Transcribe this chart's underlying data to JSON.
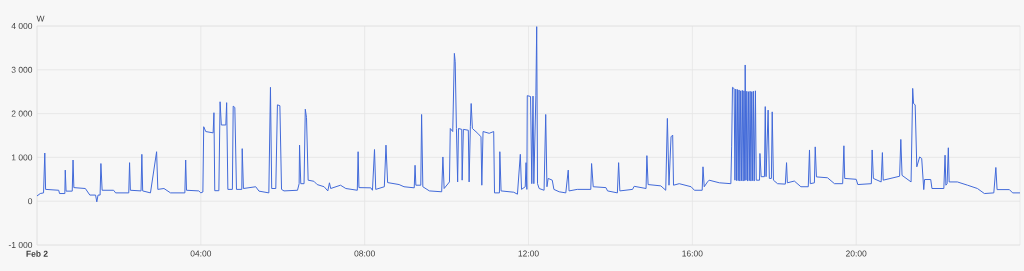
{
  "chart_data": {
    "type": "line",
    "ylabel": "W",
    "x": [
      0,
      0.08,
      0.16,
      0.19,
      0.21,
      0.53,
      0.55,
      0.68,
      0.69,
      0.71,
      0.86,
      0.88,
      0.9,
      1.18,
      1.29,
      1.43,
      1.46,
      1.49,
      1.54,
      1.56,
      1.59,
      1.87,
      1.92,
      2.24,
      2.26,
      2.28,
      2.54,
      2.56,
      2.58,
      2.77,
      2.92,
      2.95,
      3.1,
      3.26,
      3.61,
      3.63,
      3.65,
      3.95,
      4.0,
      4.05,
      4.07,
      4.12,
      4.3,
      4.32,
      4.34,
      4.44,
      4.47,
      4.5,
      4.61,
      4.63,
      4.66,
      4.77,
      4.79,
      4.83,
      4.87,
      5.0,
      5.01,
      5.04,
      5.34,
      5.42,
      5.66,
      5.7,
      5.73,
      5.83,
      5.87,
      5.93,
      5.97,
      6.03,
      6.36,
      6.4,
      6.41,
      6.44,
      6.52,
      6.55,
      6.58,
      6.62,
      6.76,
      6.84,
      7.01,
      7.1,
      7.14,
      7.17,
      7.41,
      7.54,
      7.82,
      7.84,
      7.86,
      8.15,
      8.19,
      8.24,
      8.27,
      8.48,
      8.52,
      8.56,
      8.84,
      8.96,
      9.21,
      9.23,
      9.25,
      9.37,
      9.39,
      9.42,
      9.58,
      9.88,
      9.91,
      9.94,
      10.07,
      10.09,
      10.15,
      10.19,
      10.21,
      10.24,
      10.27,
      10.29,
      10.37,
      10.38,
      10.41,
      10.53,
      10.55,
      10.58,
      10.6,
      10.63,
      10.76,
      10.84,
      10.86,
      10.89,
      11.04,
      11.15,
      11.17,
      11.29,
      11.3,
      11.33,
      11.64,
      11.73,
      11.8,
      11.83,
      11.92,
      11.94,
      11.96,
      11.97,
      12.05,
      12.08,
      12.11,
      12.13,
      12.18,
      12.2,
      12.22,
      12.26,
      12.38,
      12.42,
      12.45,
      12.48,
      12.58,
      12.62,
      12.75,
      12.91,
      12.97,
      12.99,
      13.19,
      13.52,
      13.54,
      13.58,
      13.89,
      13.93,
      14.17,
      14.2,
      14.23,
      14.54,
      14.58,
      14.87,
      14.89,
      14.92,
      15.23,
      15.35,
      15.39,
      15.43,
      15.48,
      15.52,
      15.54,
      15.68,
      15.97,
      16.05,
      16.24,
      16.26,
      16.29,
      16.37,
      16.41,
      16.66,
      16.94,
      16.96,
      16.98,
      17.02,
      17.04,
      17.06,
      17.08,
      17.1,
      17.12,
      17.14,
      17.16,
      17.18,
      17.2,
      17.22,
      17.24,
      17.26,
      17.28,
      17.29,
      17.31,
      17.33,
      17.35,
      17.37,
      17.39,
      17.41,
      17.43,
      17.45,
      17.47,
      17.49,
      17.51,
      17.54,
      17.56,
      17.64,
      17.65,
      17.68,
      17.76,
      17.78,
      17.8,
      17.85,
      17.88,
      17.93,
      17.95,
      17.98,
      18.08,
      18.27,
      18.3,
      18.32,
      18.49,
      18.65,
      18.83,
      18.86,
      18.88,
      18.98,
      19.0,
      19.03,
      19.3,
      19.47,
      19.67,
      19.7,
      19.72,
      20.0,
      20.04,
      20.37,
      20.39,
      20.42,
      20.61,
      20.64,
      20.66,
      21.06,
      21.09,
      21.12,
      21.34,
      21.38,
      21.4,
      21.44,
      21.48,
      21.55,
      21.6,
      21.65,
      21.67,
      21.82,
      21.85,
      22.14,
      22.17,
      22.19,
      22.22,
      22.25,
      22.27,
      22.47,
      22.72,
      22.96,
      23.13,
      23.36,
      23.41,
      23.44,
      23.74,
      23.82,
      24.0
    ],
    "series": [
      {
        "color": "#4169d9",
        "values": [
          120,
          175,
          190,
          1100,
          270,
          250,
          175,
          175,
          710,
          230,
          230,
          940,
          310,
          290,
          140,
          140,
          -15,
          140,
          140,
          860,
          250,
          250,
          190,
          190,
          880,
          250,
          235,
          1070,
          235,
          190,
          1130,
          270,
          290,
          190,
          190,
          940,
          250,
          235,
          190,
          210,
          1700,
          1590,
          1560,
          2020,
          240,
          240,
          2270,
          1740,
          1740,
          2250,
          270,
          270,
          2170,
          2140,
          270,
          270,
          1200,
          290,
          330,
          230,
          190,
          2600,
          290,
          290,
          2200,
          2180,
          270,
          235,
          250,
          400,
          1280,
          400,
          400,
          2100,
          1910,
          480,
          455,
          380,
          330,
          235,
          420,
          290,
          365,
          290,
          250,
          1130,
          310,
          305,
          250,
          1180,
          270,
          330,
          1280,
          425,
          380,
          330,
          305,
          820,
          365,
          365,
          1980,
          330,
          235,
          215,
          1010,
          290,
          440,
          1660,
          1590,
          3375,
          3185,
          1660,
          440,
          1660,
          1640,
          480,
          1640,
          1620,
          440,
          1700,
          2230,
          1660,
          1550,
          1470,
          365,
          1590,
          1550,
          1590,
          190,
          190,
          1130,
          235,
          205,
          160,
          1070,
          270,
          330,
          880,
          270,
          2410,
          2390,
          400,
          2400,
          400,
          2420,
          3985,
          400,
          290,
          250,
          1980,
          330,
          520,
          480,
          270,
          215,
          190,
          710,
          235,
          270,
          270,
          860,
          330,
          310,
          235,
          190,
          880,
          235,
          270,
          340,
          290,
          1040,
          380,
          350,
          250,
          1890,
          365,
          1470,
          1510,
          365,
          400,
          330,
          250,
          250,
          785,
          330,
          440,
          480,
          420,
          400,
          1240,
          2600,
          2570,
          480,
          2560,
          470,
          2550,
          470,
          2540,
          460,
          2520,
          470,
          2530,
          460,
          2520,
          470,
          3110,
          480,
          2510,
          460,
          2500,
          470,
          2510,
          460,
          2500,
          470,
          2510,
          460,
          2520,
          480,
          480,
          1090,
          560,
          560,
          2160,
          560,
          2080,
          520,
          520,
          2040,
          480,
          400,
          390,
          880,
          420,
          460,
          330,
          330,
          1170,
          400,
          420,
          1240,
          555,
          535,
          400,
          400,
          1265,
          520,
          500,
          380,
          400,
          1170,
          520,
          440,
          1110,
          480,
          570,
          1410,
          590,
          440,
          2575,
          2230,
          2200,
          785,
          1010,
          975,
          265,
          495,
          495,
          290,
          290,
          1050,
          365,
          400,
          1220,
          440,
          440,
          365,
          290,
          175,
          190,
          770,
          265,
          265,
          190,
          190
        ]
      }
    ],
    "xlim": [
      0,
      24
    ],
    "xticks": [
      {
        "value": 0,
        "label": "Feb 2"
      },
      {
        "value": 4,
        "label": "04:00"
      },
      {
        "value": 8,
        "label": "08:00"
      },
      {
        "value": 12,
        "label": "12:00"
      },
      {
        "value": 16,
        "label": "16:00"
      },
      {
        "value": 20,
        "label": "20:00"
      }
    ],
    "ylim": [
      -1000,
      4000
    ],
    "yticks": [
      {
        "value": -1000,
        "label": "-1 000"
      },
      0,
      {
        "value": 1000,
        "label": "1 000"
      },
      {
        "value": 2000,
        "label": "2 000"
      },
      {
        "value": 3000,
        "label": "3 000"
      },
      {
        "value": 4000,
        "label": "4 000"
      }
    ],
    "grid": true,
    "marker": "none",
    "line_style": "solid"
  }
}
